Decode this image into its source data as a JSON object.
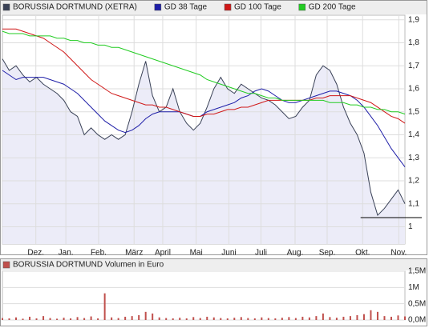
{
  "chart_data": [
    {
      "type": "line",
      "xlim": [
        0,
        59
      ],
      "xticks": [
        {
          "value": 4.9,
          "label": "Dez."
        },
        {
          "value": 9.3,
          "label": "Jan."
        },
        {
          "value": 14.1,
          "label": "Feb."
        },
        {
          "value": 19.3,
          "label": "März"
        },
        {
          "value": 23.5,
          "label": "April"
        },
        {
          "value": 28.4,
          "label": "Mai"
        },
        {
          "value": 33.2,
          "label": "Juni"
        },
        {
          "value": 37.9,
          "label": "Juli"
        },
        {
          "value": 42.9,
          "label": "Aug."
        },
        {
          "value": 47.6,
          "label": "Sep."
        },
        {
          "value": 52.8,
          "label": "Okt."
        },
        {
          "value": 58.1,
          "label": "Nov."
        }
      ],
      "ylim": [
        0.925,
        1.92
      ],
      "yticks": [
        1,
        {
          "value": 1.1,
          "label": "1,1"
        },
        {
          "value": 1.2,
          "label": "1,2"
        },
        {
          "value": 1.3,
          "label": "1,3"
        },
        {
          "value": 1.4,
          "label": "1,4"
        },
        {
          "value": 1.5,
          "label": "1,5"
        },
        {
          "value": 1.6,
          "label": "1,6"
        },
        {
          "value": 1.7,
          "label": "1,7"
        },
        {
          "value": 1.8,
          "label": "1,8"
        },
        {
          "value": 1.9,
          "label": "1,9"
        }
      ],
      "grid": true,
      "hline": 1.04,
      "series": [
        {
          "name": "BORUSSIA DORTMUND (XETRA)",
          "color": "#3a4257",
          "fill": "#ececf8",
          "values": [
            1.73,
            1.68,
            1.7,
            1.66,
            1.63,
            1.65,
            1.62,
            1.6,
            1.58,
            1.55,
            1.5,
            1.48,
            1.4,
            1.43,
            1.4,
            1.38,
            1.4,
            1.38,
            1.4,
            1.5,
            1.62,
            1.72,
            1.57,
            1.5,
            1.52,
            1.6,
            1.5,
            1.45,
            1.42,
            1.45,
            1.52,
            1.6,
            1.65,
            1.6,
            1.58,
            1.62,
            1.6,
            1.58,
            1.56,
            1.55,
            1.53,
            1.5,
            1.47,
            1.48,
            1.52,
            1.55,
            1.66,
            1.7,
            1.68,
            1.62,
            1.52,
            1.45,
            1.4,
            1.32,
            1.15,
            1.05,
            1.08,
            1.12,
            1.16,
            1.1
          ]
        },
        {
          "name": "GD 38 Tage",
          "color": "#1f1fa8",
          "values": [
            1.68,
            1.66,
            1.64,
            1.65,
            1.65,
            1.65,
            1.65,
            1.64,
            1.63,
            1.62,
            1.6,
            1.58,
            1.55,
            1.52,
            1.49,
            1.46,
            1.44,
            1.42,
            1.41,
            1.42,
            1.44,
            1.47,
            1.49,
            1.5,
            1.5,
            1.5,
            1.5,
            1.49,
            1.48,
            1.48,
            1.5,
            1.51,
            1.52,
            1.53,
            1.54,
            1.56,
            1.57,
            1.59,
            1.6,
            1.59,
            1.57,
            1.55,
            1.54,
            1.54,
            1.55,
            1.56,
            1.57,
            1.58,
            1.59,
            1.59,
            1.58,
            1.57,
            1.55,
            1.52,
            1.48,
            1.44,
            1.39,
            1.34,
            1.3,
            1.26
          ]
        },
        {
          "name": "GD 100 Tage",
          "color": "#d01818",
          "values": [
            1.86,
            1.86,
            1.86,
            1.85,
            1.84,
            1.83,
            1.82,
            1.8,
            1.78,
            1.76,
            1.73,
            1.7,
            1.67,
            1.64,
            1.62,
            1.6,
            1.58,
            1.57,
            1.56,
            1.55,
            1.54,
            1.53,
            1.53,
            1.52,
            1.52,
            1.51,
            1.5,
            1.49,
            1.48,
            1.48,
            1.49,
            1.49,
            1.5,
            1.51,
            1.51,
            1.52,
            1.52,
            1.53,
            1.54,
            1.55,
            1.55,
            1.55,
            1.55,
            1.55,
            1.55,
            1.55,
            1.56,
            1.56,
            1.57,
            1.57,
            1.57,
            1.57,
            1.56,
            1.55,
            1.54,
            1.52,
            1.5,
            1.48,
            1.47,
            1.45
          ]
        },
        {
          "name": "GD 200 Tage",
          "color": "#22cc22",
          "values": [
            1.85,
            1.84,
            1.84,
            1.84,
            1.83,
            1.83,
            1.83,
            1.83,
            1.82,
            1.82,
            1.81,
            1.81,
            1.8,
            1.8,
            1.79,
            1.79,
            1.78,
            1.78,
            1.77,
            1.76,
            1.75,
            1.74,
            1.73,
            1.72,
            1.71,
            1.7,
            1.69,
            1.68,
            1.67,
            1.66,
            1.64,
            1.63,
            1.62,
            1.61,
            1.6,
            1.59,
            1.58,
            1.58,
            1.57,
            1.56,
            1.56,
            1.55,
            1.55,
            1.55,
            1.55,
            1.55,
            1.55,
            1.55,
            1.54,
            1.54,
            1.54,
            1.53,
            1.53,
            1.52,
            1.52,
            1.51,
            1.51,
            1.5,
            1.5,
            1.49
          ]
        }
      ]
    },
    {
      "type": "bar",
      "ylim": [
        0,
        1.5
      ],
      "yticks": [
        {
          "value": 0,
          "label": "0,0M"
        },
        {
          "value": 0.5,
          "label": "0,5M"
        },
        {
          "value": 1,
          "label": "1M"
        },
        {
          "value": 1.5,
          "label": "1,5M"
        }
      ],
      "grid": true,
      "series": [
        {
          "name": "BORUSSIA DORTMUND Volumen in Euro",
          "color": "#c0504d",
          "values": [
            0.06,
            0.05,
            0.08,
            0.04,
            0.1,
            0.05,
            0.12,
            0.06,
            0.04,
            0.07,
            0.05,
            0.09,
            0.06,
            0.11,
            0.05,
            0.82,
            0.08,
            0.06,
            0.1,
            0.12,
            0.15,
            0.25,
            0.2,
            0.08,
            0.06,
            0.05,
            0.07,
            0.05,
            0.09,
            0.06,
            0.1,
            0.08,
            0.06,
            0.05,
            0.07,
            0.09,
            0.06,
            0.05,
            0.08,
            0.06,
            0.05,
            0.07,
            0.09,
            0.06,
            0.1,
            0.08,
            0.12,
            0.2,
            0.09,
            0.07,
            0.1,
            0.12,
            0.15,
            0.18,
            0.3,
            0.25,
            0.12,
            0.1,
            0.14,
            0.11
          ]
        }
      ]
    }
  ]
}
